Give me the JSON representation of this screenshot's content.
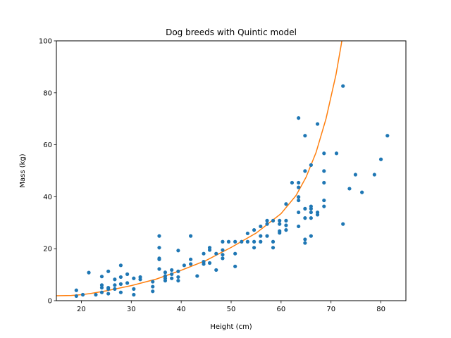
{
  "chart_data": {
    "type": "scatter",
    "title": "Dog breeds with Quintic model",
    "xlabel": "Height (cm)",
    "ylabel": "Mass (kg)",
    "xlim": [
      15,
      85
    ],
    "ylim": [
      0,
      100
    ],
    "xticks": [
      20,
      30,
      40,
      50,
      60,
      70,
      80
    ],
    "yticks": [
      0,
      20,
      40,
      60,
      80,
      100
    ],
    "grid": false,
    "series": [
      {
        "kind": "points",
        "color": "#1f77b4",
        "points": [
          [
            19.0,
            4.0
          ],
          [
            19.0,
            1.8
          ],
          [
            20.3,
            2.3
          ],
          [
            21.5,
            10.8
          ],
          [
            22.9,
            2.3
          ],
          [
            24.1,
            3.2
          ],
          [
            24.1,
            5.0
          ],
          [
            24.1,
            6.0
          ],
          [
            24.1,
            9.3
          ],
          [
            25.4,
            11.3
          ],
          [
            25.4,
            2.7
          ],
          [
            25.4,
            4.5
          ],
          [
            25.4,
            5.0
          ],
          [
            26.7,
            4.5
          ],
          [
            26.7,
            6.0
          ],
          [
            26.7,
            8.2
          ],
          [
            27.9,
            13.6
          ],
          [
            27.9,
            9.1
          ],
          [
            27.9,
            3.2
          ],
          [
            27.9,
            6.4
          ],
          [
            29.2,
            10.2
          ],
          [
            29.2,
            6.8
          ],
          [
            30.5,
            8.6
          ],
          [
            30.5,
            4.5
          ],
          [
            30.5,
            2.3
          ],
          [
            31.8,
            9.1
          ],
          [
            31.8,
            8.2
          ],
          [
            34.3,
            7.3
          ],
          [
            34.3,
            5.4
          ],
          [
            34.3,
            3.6
          ],
          [
            35.6,
            24.9
          ],
          [
            35.6,
            20.4
          ],
          [
            35.6,
            16.3
          ],
          [
            35.6,
            15.9
          ],
          [
            35.6,
            12.2
          ],
          [
            36.8,
            9.5
          ],
          [
            36.8,
            10.9
          ],
          [
            36.8,
            8.6
          ],
          [
            36.8,
            7.7
          ],
          [
            38.1,
            8.6
          ],
          [
            38.1,
            10.2
          ],
          [
            38.1,
            11.8
          ],
          [
            39.4,
            19.3
          ],
          [
            39.4,
            11.3
          ],
          [
            39.4,
            9.1
          ],
          [
            39.4,
            7.7
          ],
          [
            40.6,
            13.6
          ],
          [
            41.9,
            24.9
          ],
          [
            41.9,
            15.9
          ],
          [
            41.9,
            14.1
          ],
          [
            43.2,
            9.5
          ],
          [
            44.5,
            18.1
          ],
          [
            44.5,
            14.1
          ],
          [
            44.5,
            15.0
          ],
          [
            45.7,
            20.4
          ],
          [
            45.7,
            19.5
          ],
          [
            45.7,
            14.5
          ],
          [
            47.0,
            11.8
          ],
          [
            47.0,
            18.1
          ],
          [
            48.3,
            22.7
          ],
          [
            48.3,
            19.5
          ],
          [
            48.3,
            17.7
          ],
          [
            48.3,
            16.3
          ],
          [
            49.5,
            22.7
          ],
          [
            50.8,
            22.7
          ],
          [
            50.8,
            18.1
          ],
          [
            50.8,
            13.2
          ],
          [
            52.1,
            22.7
          ],
          [
            53.3,
            22.7
          ],
          [
            53.3,
            25.9
          ],
          [
            54.6,
            27.2
          ],
          [
            54.6,
            22.7
          ],
          [
            54.6,
            20.4
          ],
          [
            55.9,
            24.9
          ],
          [
            55.9,
            22.7
          ],
          [
            55.9,
            28.6
          ],
          [
            57.2,
            29.5
          ],
          [
            57.2,
            30.8
          ],
          [
            57.2,
            24.9
          ],
          [
            58.4,
            30.8
          ],
          [
            58.4,
            22.7
          ],
          [
            58.4,
            20.4
          ],
          [
            59.7,
            30.8
          ],
          [
            59.7,
            29.5
          ],
          [
            59.7,
            26.8
          ],
          [
            59.7,
            26.1
          ],
          [
            61.0,
            37.2
          ],
          [
            61.0,
            30.8
          ],
          [
            61.0,
            29.0
          ],
          [
            61.0,
            27.2
          ],
          [
            62.2,
            45.4
          ],
          [
            63.5,
            70.3
          ],
          [
            63.5,
            45.4
          ],
          [
            63.5,
            43.6
          ],
          [
            63.5,
            39.9
          ],
          [
            63.5,
            38.6
          ],
          [
            63.5,
            34.0
          ],
          [
            63.5,
            28.6
          ],
          [
            64.8,
            63.5
          ],
          [
            64.8,
            49.9
          ],
          [
            64.8,
            35.4
          ],
          [
            64.8,
            31.8
          ],
          [
            64.8,
            23.6
          ],
          [
            64.8,
            22.2
          ],
          [
            66.0,
            52.2
          ],
          [
            66.0,
            36.3
          ],
          [
            66.0,
            35.4
          ],
          [
            66.0,
            34.0
          ],
          [
            66.0,
            31.8
          ],
          [
            66.0,
            24.9
          ],
          [
            67.3,
            68.0
          ],
          [
            67.3,
            34.0
          ],
          [
            67.3,
            33.1
          ],
          [
            68.6,
            56.7
          ],
          [
            68.6,
            49.9
          ],
          [
            68.6,
            45.4
          ],
          [
            68.6,
            38.6
          ],
          [
            68.6,
            36.3
          ],
          [
            71.1,
            56.7
          ],
          [
            72.4,
            82.6
          ],
          [
            72.4,
            29.5
          ],
          [
            73.7,
            43.1
          ],
          [
            74.9,
            48.5
          ],
          [
            76.2,
            41.7
          ],
          [
            78.7,
            48.5
          ],
          [
            80.0,
            54.4
          ],
          [
            81.3,
            63.5
          ]
        ]
      },
      {
        "kind": "curve",
        "name": "",
        "color": "#ff7f0e",
        "points": [
          [
            15,
            1.9
          ],
          [
            18,
            2.0
          ],
          [
            20,
            2.3
          ],
          [
            22,
            2.8
          ],
          [
            25,
            3.8
          ],
          [
            30,
            5.8
          ],
          [
            35,
            8.3
          ],
          [
            40,
            11.7
          ],
          [
            45,
            15.5
          ],
          [
            50,
            20.5
          ],
          [
            55,
            26.0
          ],
          [
            60,
            33.5
          ],
          [
            63,
            40.5
          ],
          [
            65,
            47.5
          ],
          [
            67,
            57.0
          ],
          [
            69,
            70.0
          ],
          [
            71,
            87.0
          ],
          [
            72,
            98.0
          ],
          [
            72.5,
            104.0
          ]
        ]
      }
    ]
  }
}
